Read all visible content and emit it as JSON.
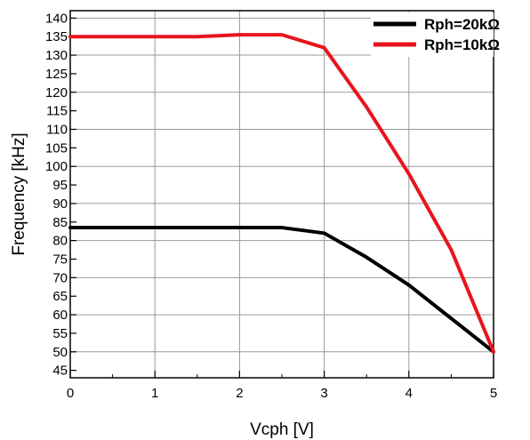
{
  "chart_data": {
    "type": "line",
    "xlabel": "Vcph [V]",
    "ylabel": "Frequency [kHz]",
    "xlim": [
      0,
      5
    ],
    "ylim": [
      43,
      142
    ],
    "x_ticks": [
      0,
      1,
      2,
      3,
      4,
      5
    ],
    "x_tick_labels": [
      "0",
      "1",
      "2",
      "3",
      "4",
      "5"
    ],
    "y_ticks": [
      45,
      50,
      55,
      60,
      65,
      70,
      75,
      80,
      85,
      90,
      95,
      100,
      105,
      110,
      115,
      120,
      125,
      130,
      135,
      140
    ],
    "y_tick_labels": [
      "45",
      "50",
      "55",
      "60",
      "65",
      "70",
      "75",
      "80",
      "85",
      "90",
      "95",
      "100",
      "105",
      "110",
      "115",
      "120",
      "125",
      "130",
      "135",
      "140"
    ],
    "grid": true,
    "legend_position": "top-right",
    "series": [
      {
        "name": "Rph=20kΩ",
        "color": "#000000",
        "x": [
          0,
          1,
          2,
          2.5,
          3,
          3.5,
          4,
          4.5,
          5
        ],
        "y": [
          83.5,
          83.5,
          83.5,
          83.5,
          82,
          75.5,
          68,
          59,
          50
        ]
      },
      {
        "name": "Rph=10kΩ",
        "color": "#e8141c",
        "x": [
          0,
          1,
          1.5,
          2,
          2.5,
          3,
          3.5,
          4,
          4.5,
          5
        ],
        "y": [
          135,
          135,
          135,
          135.5,
          135.5,
          132,
          116,
          98,
          77.5,
          50
        ]
      }
    ]
  }
}
